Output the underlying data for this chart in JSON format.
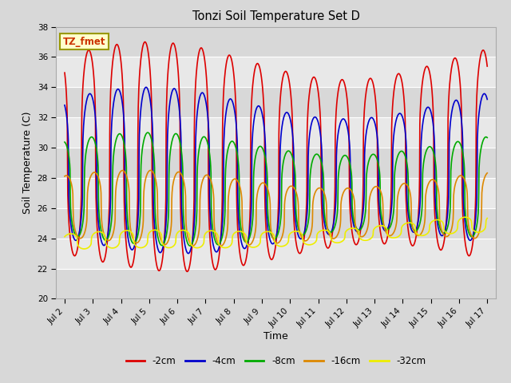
{
  "title": "Tonzi Soil Temperature Set D",
  "xlabel": "Time",
  "ylabel": "Soil Temperature (C)",
  "xlim_days": [
    1.7,
    17.3
  ],
  "ylim": [
    20,
    38
  ],
  "yticks": [
    20,
    22,
    24,
    26,
    28,
    30,
    32,
    34,
    36,
    38
  ],
  "xtick_labels": [
    "Jul 2",
    "Jul 3",
    "Jul 4",
    "Jul 5",
    "Jul 6",
    "Jul 7",
    "Jul 8",
    "Jul 9",
    "Jul 10",
    "Jul 11",
    "Jul 12",
    "Jul 13",
    "Jul 14",
    "Jul 15",
    "Jul 16",
    "Jul 17"
  ],
  "xtick_positions": [
    2,
    3,
    4,
    5,
    6,
    7,
    8,
    9,
    10,
    11,
    12,
    13,
    14,
    15,
    16,
    17
  ],
  "fig_bg_color": "#d8d8d8",
  "plot_bg_color": "#e8e8e8",
  "band_colors": [
    "#d8d8d8",
    "#e8e8e8"
  ],
  "line_colors": {
    "-2cm": "#dd0000",
    "-4cm": "#0000cc",
    "-8cm": "#00aa00",
    "-16cm": "#dd8800",
    "-32cm": "#eeee00"
  },
  "line_width": 1.2,
  "annotation_text": "TZ_fmet",
  "annotation_color": "#cc3300",
  "annotation_bg": "#ffffcc",
  "annotation_border": "#999900",
  "grid_color": "#ffffff",
  "day_start": 2.0,
  "day_end": 17.0,
  "n_points": 1500,
  "peak_sharpness": 3.0,
  "series_params": {
    "-2cm": {
      "base": 26.5,
      "amp": 6.2,
      "phase": 0.6,
      "amp_var": 1.0,
      "base_var": 0.3
    },
    "-4cm": {
      "base": 26.5,
      "amp": 4.8,
      "phase": 0.64,
      "amp_var": 0.9,
      "base_var": 0.3
    },
    "-8cm": {
      "base": 26.6,
      "amp": 3.0,
      "phase": 0.7,
      "amp_var": 0.6,
      "base_var": 0.2
    },
    "-16cm": {
      "base": 25.8,
      "amp": 1.5,
      "phase": 0.8,
      "amp_var": 0.3,
      "base_var": 0.2
    },
    "-32cm": {
      "base": 24.7,
      "amp": 0.35,
      "phase": 0.95,
      "amp_var": 0.05,
      "base_var": 0.15
    }
  }
}
